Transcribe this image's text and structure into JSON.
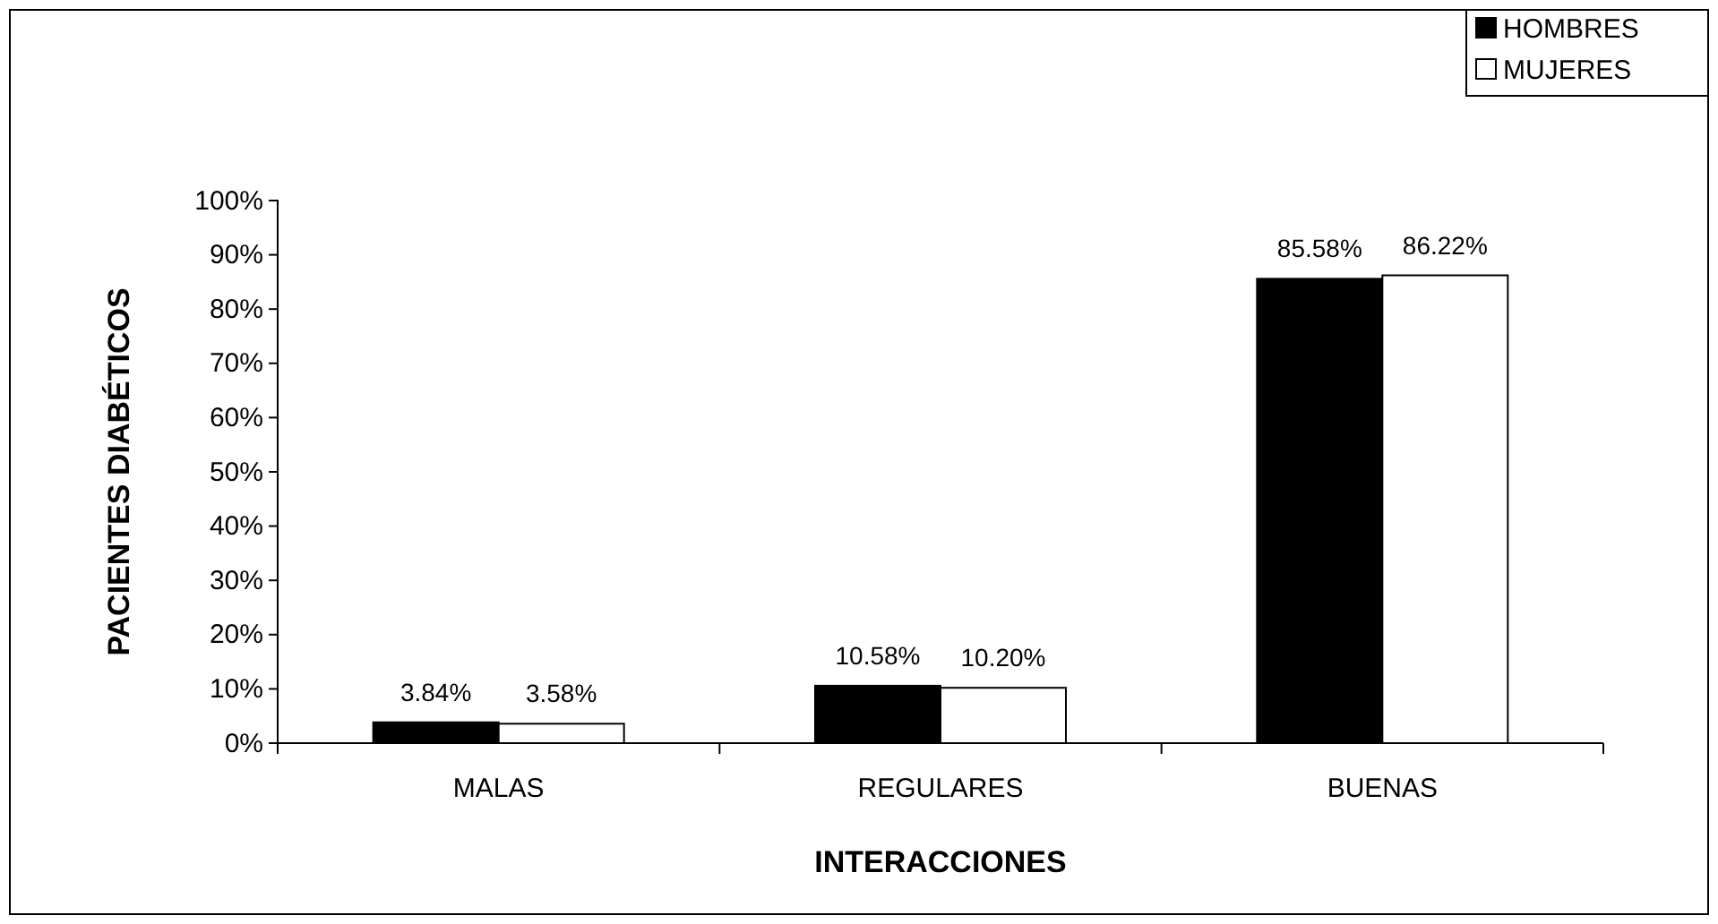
{
  "chart_data": {
    "type": "bar",
    "xlabel": "INTERACCIONES",
    "ylabel": "PACIENTES DIABÉTICOS",
    "categories": [
      "MALAS",
      "REGULARES",
      "BUENAS"
    ],
    "series": [
      {
        "name": "HOMBRES",
        "color": "#000000",
        "values": [
          3.84,
          10.58,
          85.58
        ],
        "value_labels": [
          "3.84%",
          "10.58%",
          "85.58%"
        ]
      },
      {
        "name": "MUJERES",
        "color": "#ffffff",
        "values": [
          3.58,
          10.2,
          86.22
        ],
        "value_labels": [
          "3.58%",
          "10.20%",
          "86.22%"
        ]
      }
    ],
    "ylim": [
      0,
      100
    ],
    "yticks": [
      {
        "value": 0,
        "label": "0%"
      },
      {
        "value": 10,
        "label": "10%"
      },
      {
        "value": 20,
        "label": "20%"
      },
      {
        "value": 30,
        "label": "30%"
      },
      {
        "value": 40,
        "label": "40%"
      },
      {
        "value": 50,
        "label": "50%"
      },
      {
        "value": 60,
        "label": "60%"
      },
      {
        "value": 70,
        "label": "70%"
      },
      {
        "value": 80,
        "label": "80%"
      },
      {
        "value": 90,
        "label": "90%"
      },
      {
        "value": 100,
        "label": "100%"
      }
    ],
    "grid": false,
    "legend": "top right"
  }
}
